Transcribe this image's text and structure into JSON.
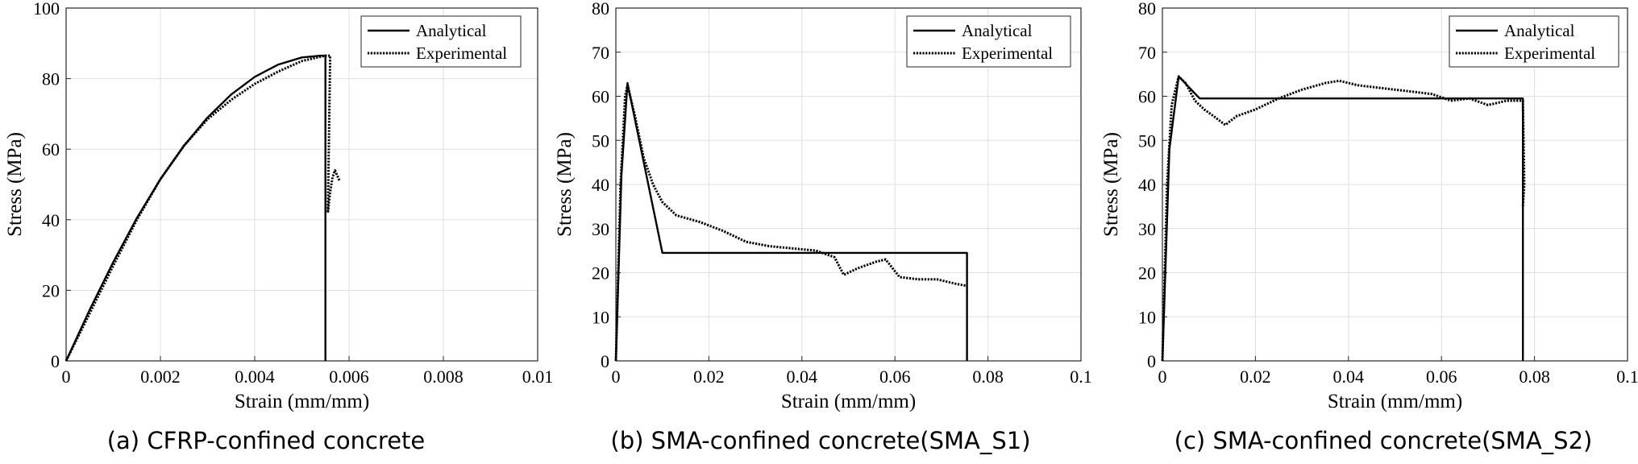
{
  "figure": {
    "captions": [
      "(a) CFRP-confined concrete",
      "(b) SMA-confined concrete(SMA_S1)",
      "(c) SMA-confined concrete(SMA_S2)"
    ]
  },
  "chart_data": [
    {
      "type": "line",
      "caption": "(a) CFRP-confined concrete",
      "xlabel": "Strain (mm/mm)",
      "ylabel": "Stress (MPa)",
      "xlim": [
        0,
        0.01
      ],
      "ylim": [
        0,
        100
      ],
      "xticks": [
        0,
        0.002,
        0.004,
        0.006,
        0.008,
        0.01
      ],
      "xtick_labels": [
        "0",
        "0.002",
        "0.004",
        "0.006",
        "0.008",
        "0.01"
      ],
      "yticks": [
        0,
        20,
        40,
        60,
        80,
        100
      ],
      "ytick_labels": [
        "0",
        "20",
        "40",
        "60",
        "80",
        "100"
      ],
      "grid": true,
      "legend_position": "top-right",
      "series": [
        {
          "name": "Analytical",
          "style": "solid",
          "x": [
            0,
            0.0005,
            0.001,
            0.0015,
            0.002,
            0.0025,
            0.003,
            0.0035,
            0.004,
            0.0045,
            0.005,
            0.0054,
            0.0055,
            0.0055
          ],
          "y": [
            0,
            14.5,
            28,
            40.5,
            51.5,
            61,
            69,
            75.5,
            80.5,
            84,
            86,
            86.5,
            86.5,
            0
          ]
        },
        {
          "name": "Experimental",
          "style": "dotted",
          "x": [
            0,
            0.0005,
            0.001,
            0.0015,
            0.002,
            0.0025,
            0.003,
            0.0035,
            0.004,
            0.0045,
            0.005,
            0.0055,
            0.0056,
            0.00555,
            0.0056,
            0.00565,
            0.0057,
            0.0058
          ],
          "y": [
            0,
            13.5,
            27,
            40,
            51.5,
            61,
            68.5,
            74,
            78.5,
            82,
            85,
            86.5,
            86.5,
            42,
            48,
            52,
            54,
            51
          ]
        }
      ]
    },
    {
      "type": "line",
      "caption": "(b) SMA-confined concrete(SMA_S1)",
      "xlabel": "Strain (mm/mm)",
      "ylabel": "Stress (MPa)",
      "xlim": [
        0,
        0.1
      ],
      "ylim": [
        0,
        80
      ],
      "xticks": [
        0,
        0.02,
        0.04,
        0.06,
        0.08,
        0.1
      ],
      "xtick_labels": [
        "0",
        "0.02",
        "0.04",
        "0.06",
        "0.08",
        "0.1"
      ],
      "yticks": [
        0,
        10,
        20,
        30,
        40,
        50,
        60,
        70,
        80
      ],
      "ytick_labels": [
        "0",
        "10",
        "20",
        "30",
        "40",
        "50",
        "60",
        "70",
        "80"
      ],
      "grid": true,
      "legend_position": "top-right",
      "series": [
        {
          "name": "Analytical",
          "style": "solid",
          "x": [
            0,
            0.0012,
            0.0025,
            0.01,
            0.0755,
            0.0755
          ],
          "y": [
            0,
            42,
            63,
            24.5,
            24.5,
            0
          ]
        },
        {
          "name": "Experimental",
          "style": "dotted",
          "x": [
            0,
            0.001,
            0.002,
            0.0025,
            0.004,
            0.006,
            0.008,
            0.01,
            0.013,
            0.018,
            0.023,
            0.028,
            0.033,
            0.038,
            0.043,
            0.047,
            0.049,
            0.052,
            0.056,
            0.058,
            0.061,
            0.065,
            0.069,
            0.073,
            0.0755
          ],
          "y": [
            0,
            40,
            60,
            62.5,
            56,
            46,
            40,
            36,
            33,
            31.5,
            29.5,
            27,
            26,
            25.5,
            25,
            23.5,
            19.5,
            21,
            22.5,
            23,
            19,
            18.5,
            18.5,
            17.5,
            17
          ]
        }
      ]
    },
    {
      "type": "line",
      "caption": "(c) SMA-confined concrete(SMA_S2)",
      "xlabel": "Strain (mm/mm)",
      "ylabel": "Stress (MPa)",
      "xlim": [
        0,
        0.1
      ],
      "ylim": [
        0,
        80
      ],
      "xticks": [
        0,
        0.02,
        0.04,
        0.06,
        0.08,
        0.1
      ],
      "xtick_labels": [
        "0",
        "0.02",
        "0.04",
        "0.06",
        "0.08",
        "0.1"
      ],
      "yticks": [
        0,
        10,
        20,
        30,
        40,
        50,
        60,
        70,
        80
      ],
      "ytick_labels": [
        "0",
        "10",
        "20",
        "30",
        "40",
        "50",
        "60",
        "70",
        "80"
      ],
      "grid": true,
      "legend_position": "top-right",
      "series": [
        {
          "name": "Analytical",
          "style": "solid",
          "x": [
            0,
            0.0015,
            0.0035,
            0.008,
            0.0775,
            0.0775
          ],
          "y": [
            0,
            48,
            64.5,
            59.5,
            59.5,
            0
          ]
        },
        {
          "name": "Experimental",
          "style": "dotted",
          "x": [
            0,
            0.001,
            0.002,
            0.0035,
            0.005,
            0.007,
            0.009,
            0.011,
            0.0135,
            0.016,
            0.02,
            0.025,
            0.03,
            0.035,
            0.038,
            0.042,
            0.046,
            0.05,
            0.054,
            0.058,
            0.062,
            0.066,
            0.07,
            0.074,
            0.0775,
            0.0778,
            0.0775
          ],
          "y": [
            0,
            40,
            58,
            64.5,
            63,
            59,
            57,
            55.5,
            53.5,
            55.5,
            57,
            59.5,
            61.5,
            63,
            63.5,
            62.5,
            62,
            61.5,
            61,
            60.5,
            59,
            59.5,
            58,
            59,
            59,
            40,
            35
          ]
        }
      ]
    }
  ]
}
